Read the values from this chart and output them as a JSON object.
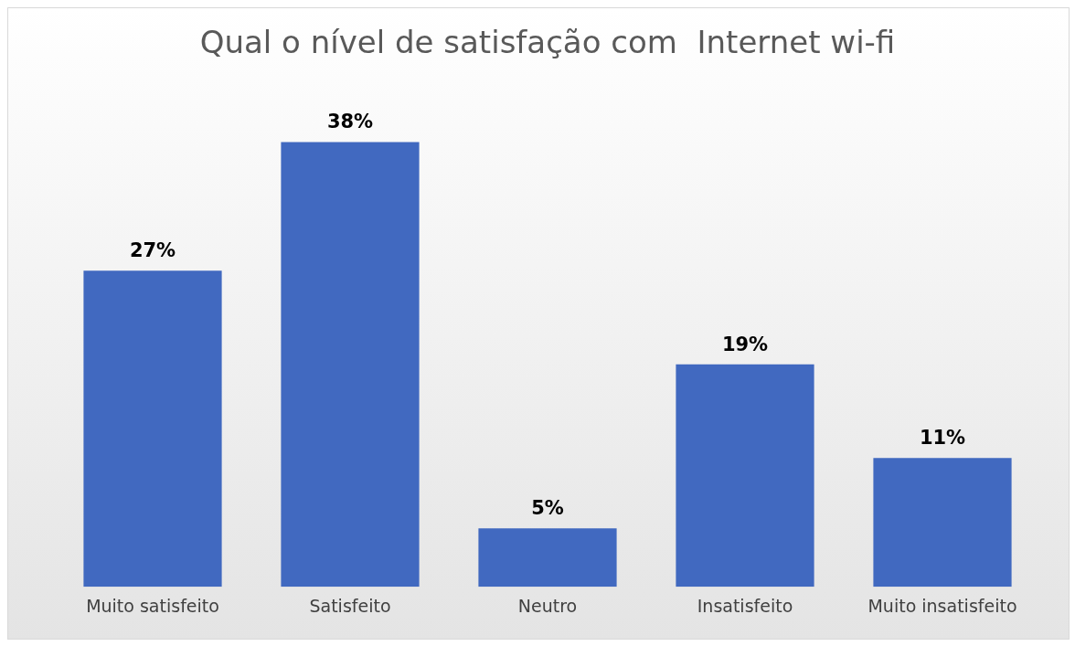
{
  "chart_data": {
    "type": "bar",
    "title": "Qual o nível de satisfação com  Internet wi-fi",
    "categories": [
      "Muito satisfeito",
      "Satisfeito",
      "Neutro",
      "Insatisfeito",
      "Muito insatisfeito"
    ],
    "values": [
      27,
      38,
      5,
      19,
      11
    ],
    "value_labels": [
      "27%",
      "38%",
      "5%",
      "19%",
      "11%"
    ],
    "color": "#4169c0",
    "legend": false
  }
}
